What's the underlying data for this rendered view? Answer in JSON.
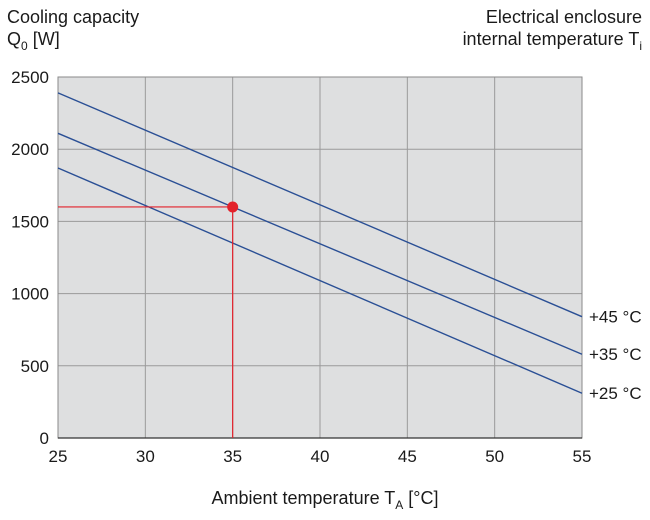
{
  "header": {
    "left_line1": "Cooling capacity",
    "left_line2_main": "Q",
    "left_line2_sub": "0",
    "left_line2_rest": " [W]",
    "right_line1": "Electrical enclosure",
    "right_line2_main": "internal temperature T",
    "right_line2_sub": "i"
  },
  "x_title": {
    "main": "Ambient temperature T",
    "sub": "A",
    "rest": " [°C]"
  },
  "chart_data": {
    "type": "line",
    "xlim": [
      25,
      55
    ],
    "ylim": [
      0,
      2500
    ],
    "x_ticks": [
      25,
      30,
      35,
      40,
      45,
      50,
      55
    ],
    "y_ticks": [
      0,
      500,
      1000,
      1500,
      2000,
      2500
    ],
    "grid": true,
    "series": [
      {
        "name": "+45 °C",
        "x": [
          25,
          55
        ],
        "y": [
          2390,
          840
        ]
      },
      {
        "name": "+35 °C",
        "x": [
          25,
          55
        ],
        "y": [
          2110,
          580
        ]
      },
      {
        "name": "+25 °C",
        "x": [
          25,
          55
        ],
        "y": [
          1870,
          310
        ]
      }
    ],
    "annotation": {
      "x": 35,
      "y": 1600
    },
    "colors": {
      "plot_bg": "#dedfe0",
      "grid": "#9a9a9a",
      "series": "#2a4f95",
      "marker": "#e3212b"
    }
  }
}
